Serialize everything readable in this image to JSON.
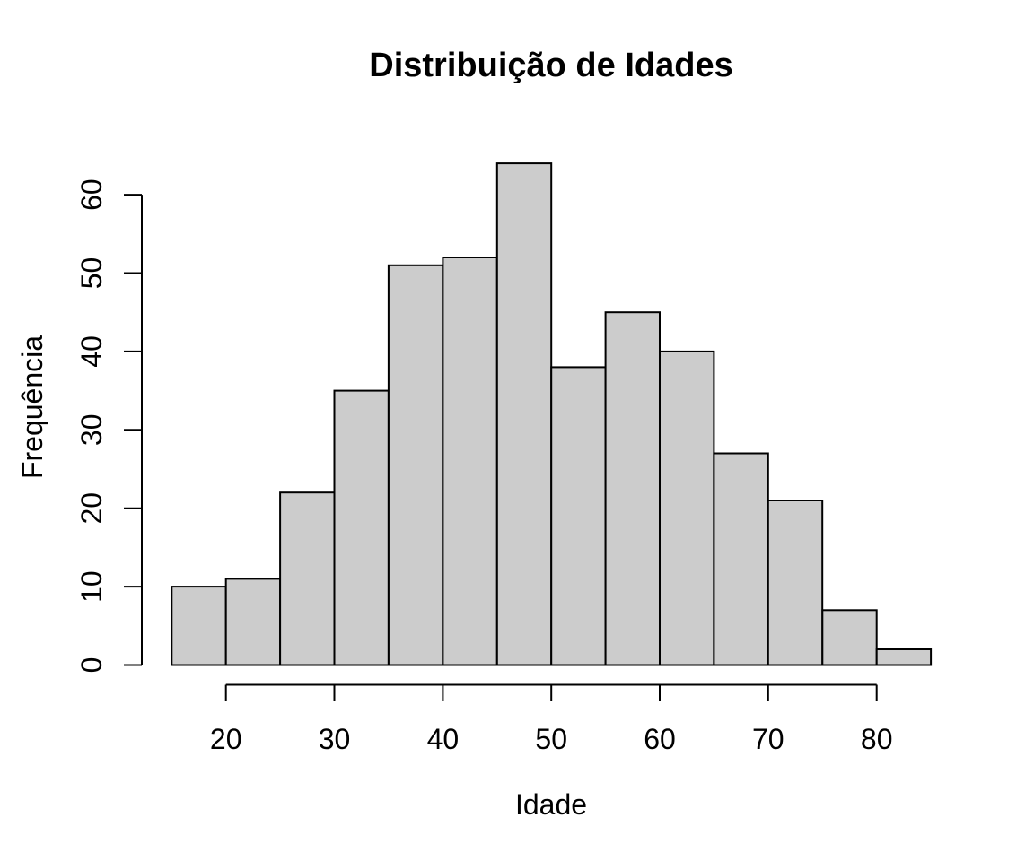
{
  "chart_data": {
    "type": "bar",
    "subtype": "histogram",
    "title": "Distribuição de Idades",
    "xlabel": "Idade",
    "ylabel": "Frequência",
    "bin_edges": [
      15,
      20,
      25,
      30,
      35,
      40,
      45,
      50,
      55,
      60,
      65,
      70,
      75,
      80,
      85
    ],
    "counts": [
      10,
      11,
      22,
      35,
      51,
      52,
      64,
      38,
      45,
      40,
      27,
      21,
      7,
      2
    ],
    "x_ticks": [
      "20",
      "30",
      "40",
      "50",
      "60",
      "70",
      "80"
    ],
    "y_ticks": [
      "0",
      "10",
      "20",
      "30",
      "40",
      "50",
      "60"
    ],
    "xlim": [
      15,
      85
    ],
    "ylim": [
      0,
      64
    ],
    "grid": false,
    "legend": false,
    "bar_fill": "#CCCCCC",
    "bar_stroke": "#000000",
    "axis_color": "#000000",
    "background": "#FFFFFF"
  }
}
